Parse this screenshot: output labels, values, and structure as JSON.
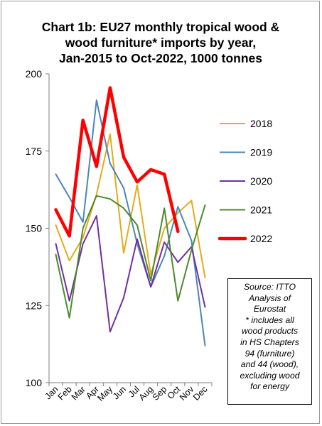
{
  "chart_data": {
    "type": "line",
    "title_lines": [
      "Chart 1b: EU27 monthly tropical wood &",
      "wood furniture* imports by year,",
      "Jan-2015 to Oct-2022, 1000 tonnes"
    ],
    "categories": [
      "Jan",
      "Feb",
      "Mar",
      "Apr",
      "May",
      "Jun",
      "Jul",
      "Aug",
      "Sep",
      "Oct",
      "Nov",
      "Dec"
    ],
    "ylim": [
      100,
      200
    ],
    "yticks": [
      "100",
      "125",
      "150",
      "175",
      "200"
    ],
    "ytick_values": [
      100,
      125,
      150,
      175,
      200
    ],
    "grid": false,
    "legend_position": "right",
    "series": [
      {
        "name": "2018",
        "color": "#e8a91b",
        "width": 2,
        "values": [
          151,
          139.5,
          147,
          161,
          180.5,
          142,
          164,
          135,
          150,
          155,
          159,
          134
        ]
      },
      {
        "name": "2019",
        "color": "#4a86b8",
        "width": 2,
        "values": [
          167.5,
          160,
          152,
          191.5,
          171,
          163,
          145,
          131,
          141,
          157,
          146,
          112
        ]
      },
      {
        "name": "2020",
        "color": "#7030a0",
        "width": 2,
        "values": [
          145,
          126.5,
          145,
          154,
          116.5,
          127.5,
          146.5,
          131,
          145.5,
          139,
          144,
          124.5
        ]
      },
      {
        "name": "2021",
        "color": "#4d8a2e",
        "width": 2,
        "values": [
          141.5,
          121,
          150,
          160.5,
          159.5,
          156.5,
          151,
          133,
          156.5,
          126.5,
          143,
          157.5
        ]
      },
      {
        "name": "2022",
        "color": "#ff0000",
        "width": 4.5,
        "values": [
          156,
          147.5,
          185,
          170,
          195.5,
          173,
          165,
          169,
          167.5,
          149,
          null,
          null
        ]
      }
    ]
  },
  "note": {
    "lines": [
      "Source: ITTO",
      "Analysis of",
      "Eurostat",
      "* includes all",
      "wood products",
      "in HS Chapters",
      "94 (furniture)",
      "and 44 (wood),",
      "excluding wood",
      "for energy"
    ]
  }
}
